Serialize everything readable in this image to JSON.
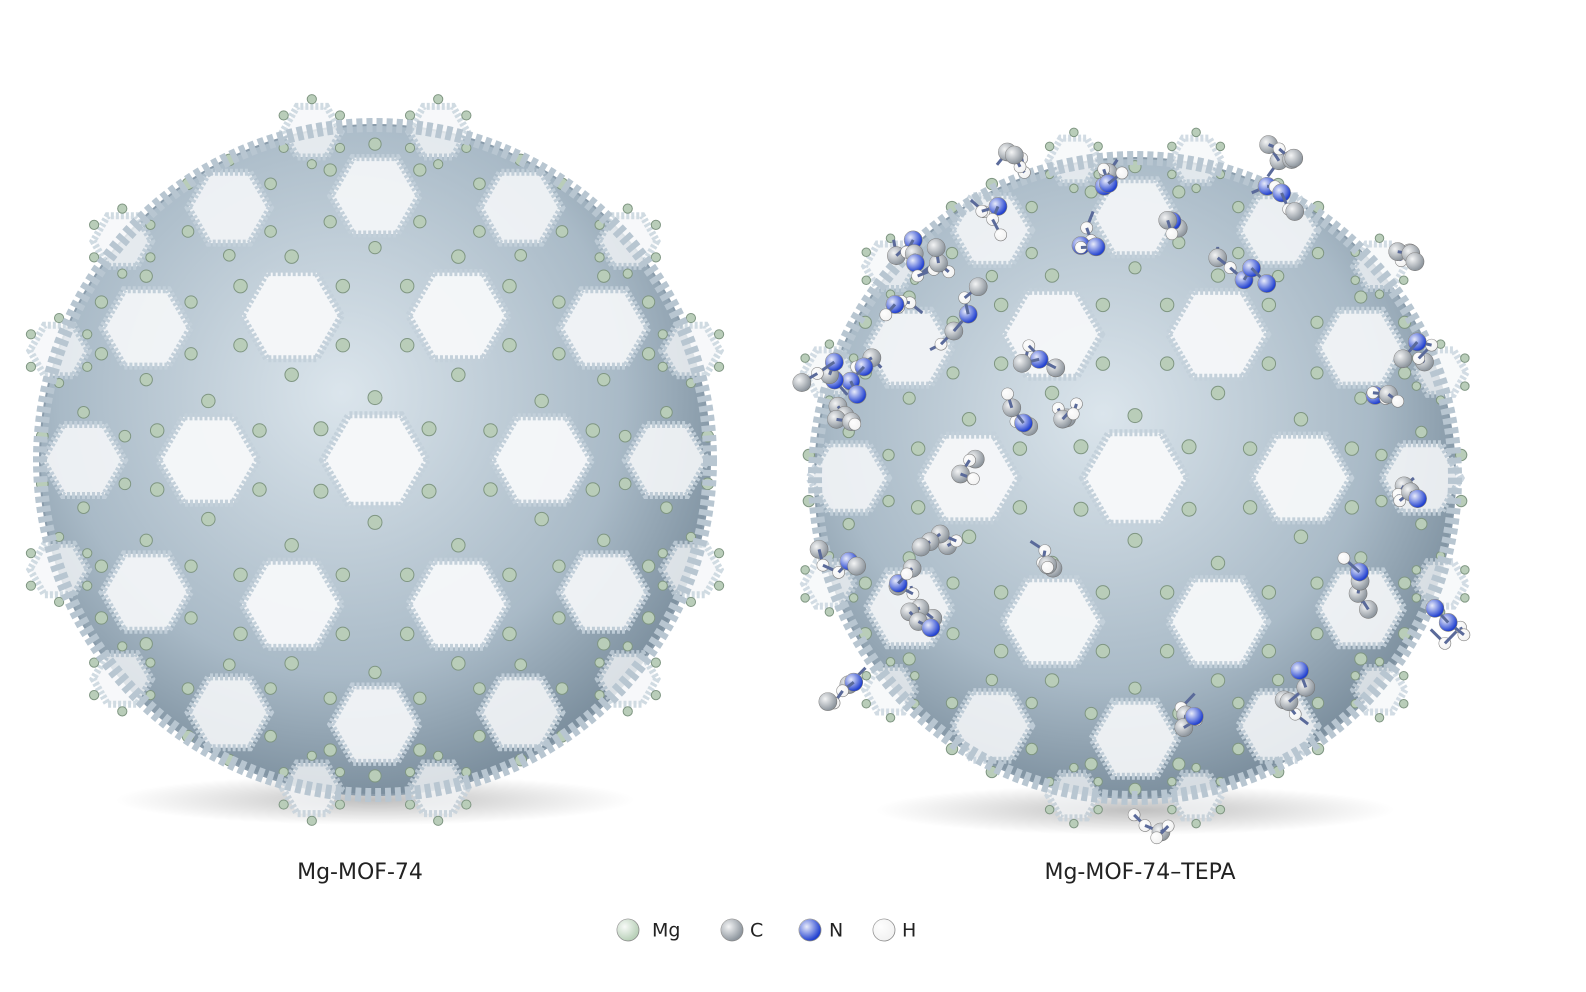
{
  "panels": [
    {
      "label": "Mg-MOF-74"
    },
    {
      "label": "Mg-MOF-74–TEPA"
    }
  ],
  "legend": [
    {
      "label": "Mg",
      "color": "#b8d0b8"
    },
    {
      "label": "C",
      "color": "#8e969e"
    },
    {
      "label": "N",
      "color": "#1f3fd0"
    },
    {
      "label": "H",
      "color": "#f2f2f2"
    }
  ]
}
